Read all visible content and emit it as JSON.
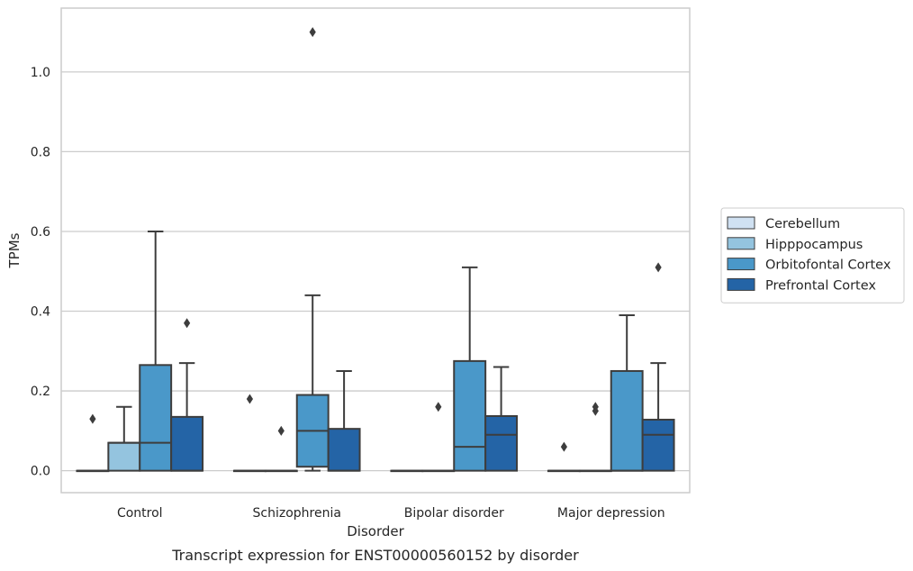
{
  "chart_data": {
    "type": "box",
    "categories": [
      "Control",
      "Schizophrenia",
      "Bipolar disorder",
      "Major depression"
    ],
    "series": [
      {
        "name": "Cerebellum",
        "color": "#d0e1f2",
        "boxes": [
          {
            "q1": 0,
            "median": 0,
            "q3": 0,
            "whisker_low": 0,
            "whisker_high": 0,
            "outliers": [
              0.13
            ]
          },
          {
            "q1": 0,
            "median": 0,
            "q3": 0,
            "whisker_low": 0,
            "whisker_high": 0,
            "outliers": [
              0.18
            ]
          },
          {
            "q1": 0,
            "median": 0,
            "q3": 0,
            "whisker_low": 0,
            "whisker_high": 0,
            "outliers": []
          },
          {
            "q1": 0,
            "median": 0,
            "q3": 0,
            "whisker_low": 0,
            "whisker_high": 0,
            "outliers": [
              0.06
            ]
          }
        ]
      },
      {
        "name": "Hipppocampus",
        "color": "#94c4df",
        "boxes": [
          {
            "q1": 0,
            "median": 0.07,
            "q3": 0.07,
            "whisker_low": 0,
            "whisker_high": 0.16,
            "outliers": []
          },
          {
            "q1": 0,
            "median": 0,
            "q3": 0,
            "whisker_low": 0,
            "whisker_high": 0,
            "outliers": [
              0.1
            ]
          },
          {
            "q1": 0,
            "median": 0,
            "q3": 0,
            "whisker_low": 0,
            "whisker_high": 0,
            "outliers": [
              0.16
            ]
          },
          {
            "q1": 0,
            "median": 0,
            "q3": 0,
            "whisker_low": 0,
            "whisker_high": 0,
            "outliers": [
              0.15,
              0.16
            ]
          }
        ]
      },
      {
        "name": "Orbitofontal Cortex",
        "color": "#4a98c9",
        "boxes": [
          {
            "q1": 0,
            "median": 0.07,
            "q3": 0.265,
            "whisker_low": 0,
            "whisker_high": 0.6,
            "outliers": []
          },
          {
            "q1": 0.01,
            "median": 0.1,
            "q3": 0.19,
            "whisker_low": 0,
            "whisker_high": 0.44,
            "outliers": [
              1.1
            ]
          },
          {
            "q1": 0,
            "median": 0.06,
            "q3": 0.275,
            "whisker_low": 0,
            "whisker_high": 0.51,
            "outliers": []
          },
          {
            "q1": 0,
            "median": 0,
            "q3": 0.25,
            "whisker_low": 0,
            "whisker_high": 0.39,
            "outliers": []
          }
        ]
      },
      {
        "name": "Prefrontal Cortex",
        "color": "#2464a6",
        "boxes": [
          {
            "q1": 0,
            "median": 0,
            "q3": 0.135,
            "whisker_low": 0,
            "whisker_high": 0.27,
            "outliers": [
              0.37
            ]
          },
          {
            "q1": 0,
            "median": 0,
            "q3": 0.105,
            "whisker_low": 0,
            "whisker_high": 0.25,
            "outliers": []
          },
          {
            "q1": 0,
            "median": 0.09,
            "q3": 0.137,
            "whisker_low": 0,
            "whisker_high": 0.26,
            "outliers": []
          },
          {
            "q1": 0,
            "median": 0.09,
            "q3": 0.128,
            "whisker_low": 0,
            "whisker_high": 0.27,
            "outliers": [
              0.51
            ]
          }
        ]
      }
    ],
    "title": "",
    "xlabel": "Disorder",
    "ylabel": "TPMs",
    "caption": "Transcript expression for ENST00000560152 by disorder",
    "ylim": [
      -0.055,
      1.16
    ],
    "yticks": [
      0.0,
      0.2,
      0.4,
      0.6,
      0.8,
      1.0
    ],
    "ytick_labels": [
      "0.0",
      "0.2",
      "0.4",
      "0.6",
      "0.8",
      "1.0"
    ],
    "grid": "horizontal",
    "legend_position": "outside-right"
  }
}
